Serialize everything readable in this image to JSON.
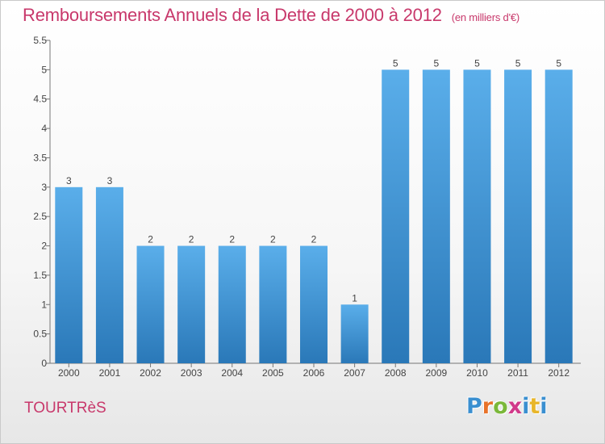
{
  "title": "Remboursements Annuels de la Dette de 2000 à 2012",
  "unit_note": "(en milliers d'€)",
  "commune": "TOURTRèS",
  "logo": {
    "letters": [
      "P",
      "r",
      "o",
      "x",
      "i",
      "t",
      "i"
    ],
    "colors": [
      "#3a8fd0",
      "#e8732a",
      "#7bb83a",
      "#d13a8a",
      "#3a8fd0",
      "#e8b62a",
      "#3a8fd0"
    ]
  },
  "chart_data": {
    "type": "bar",
    "categories": [
      "2000",
      "2001",
      "2002",
      "2003",
      "2004",
      "2005",
      "2006",
      "2007",
      "2008",
      "2009",
      "2010",
      "2011",
      "2012"
    ],
    "values": [
      3,
      3,
      2,
      2,
      2,
      2,
      2,
      1,
      5,
      5,
      5,
      5,
      5
    ],
    "data_labels": [
      "3",
      "3",
      "2",
      "2",
      "2",
      "2",
      "2",
      "1",
      "5",
      "5",
      "5",
      "5",
      "5"
    ],
    "yticks": [
      "0",
      "0.5",
      "1",
      "1.5",
      "2",
      "2.5",
      "3",
      "3.5",
      "4",
      "4.5",
      "5",
      "5.5"
    ],
    "ylim": [
      0,
      5.5
    ],
    "grid": false,
    "bar_color_top": "#5aaeea",
    "bar_color_bottom": "#2a78b8"
  }
}
